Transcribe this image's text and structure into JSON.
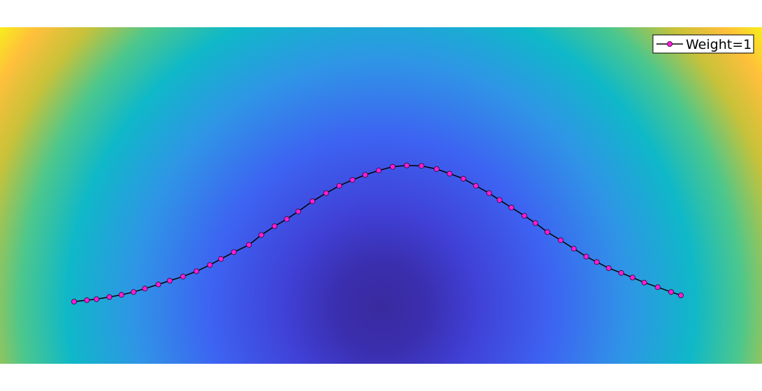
{
  "chart_data": {
    "type": "line",
    "title": "",
    "xlabel": "",
    "ylabel": "",
    "grid": false,
    "legend_position": "top-right",
    "background": "radial-field",
    "xlim": [
      0,
      1
    ],
    "ylim": [
      0,
      1
    ],
    "colors": {
      "line": "#000000",
      "marker": "#ff1cd8",
      "marker_edge": "#2a0a2a",
      "field_stops": [
        "#3a2a9e",
        "#3a2fb0",
        "#4040d6",
        "#3d63f2",
        "#2f95e6",
        "#0fb8c8",
        "#4dc78c",
        "#c7c23a",
        "#ffbf3b",
        "#f6f01a"
      ]
    },
    "series": [
      {
        "name": "Weight=1",
        "x": [
          0.0,
          0.0211,
          0.0369,
          0.0581,
          0.078,
          0.098,
          0.1167,
          0.1388,
          0.1576,
          0.1794,
          0.2016,
          0.2238,
          0.2421,
          0.2632,
          0.2881,
          0.3085,
          0.3303,
          0.3505,
          0.3694,
          0.3927,
          0.4153,
          0.437,
          0.4588,
          0.4797,
          0.502,
          0.525,
          0.5483,
          0.5725,
          0.5975,
          0.6189,
          0.6415,
          0.6621,
          0.6839,
          0.7011,
          0.7206,
          0.7421,
          0.7601,
          0.7799,
          0.802,
          0.8235,
          0.844,
          0.8614,
          0.881,
          0.9016,
          0.9203,
          0.9398,
          0.9617,
          0.9839,
          1.0
        ],
        "y": [
          0.0,
          0.011,
          0.018,
          0.034,
          0.05,
          0.071,
          0.096,
          0.126,
          0.154,
          0.184,
          0.223,
          0.269,
          0.314,
          0.363,
          0.417,
          0.489,
          0.554,
          0.606,
          0.662,
          0.737,
          0.797,
          0.851,
          0.894,
          0.931,
          0.963,
          0.991,
          1.0,
          0.997,
          0.974,
          0.94,
          0.903,
          0.851,
          0.797,
          0.746,
          0.691,
          0.631,
          0.577,
          0.511,
          0.451,
          0.389,
          0.331,
          0.291,
          0.246,
          0.211,
          0.177,
          0.14,
          0.106,
          0.071,
          0.046
        ]
      }
    ]
  }
}
